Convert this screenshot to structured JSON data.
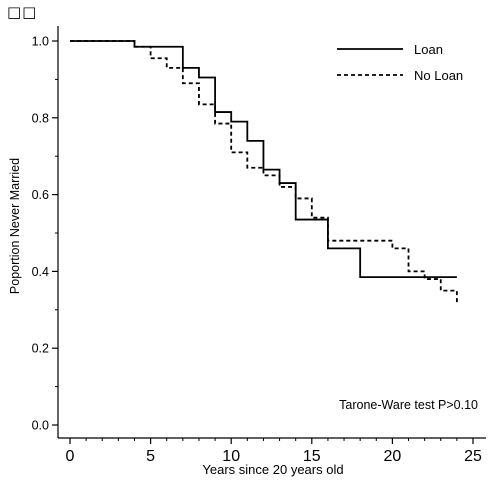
{
  "corner_text": "□□",
  "chart_data": {
    "type": "line",
    "title": "",
    "xlabel": "Years since 20 years old",
    "ylabel": "Poportion Never Married",
    "xlim": [
      0,
      25
    ],
    "ylim": [
      0.0,
      1.0
    ],
    "x_ticks": [
      0,
      5,
      10,
      15,
      20,
      25
    ],
    "x_tick_labels": [
      "0",
      "5",
      "10",
      "15",
      "20",
      "25"
    ],
    "y_ticks": [
      0.0,
      0.2,
      0.4,
      0.6,
      0.8,
      1.0
    ],
    "y_tick_labels": [
      "0.0",
      "0.2",
      "0.4",
      "0.6",
      "0.8",
      "1.0"
    ],
    "grid": false,
    "legend_position": "top-right",
    "annotation": "Tarone-Ware test  P>0.10",
    "series": [
      {
        "name": "Loan",
        "style": "solid",
        "color": "#000000",
        "step": true,
        "points": [
          [
            0,
            1.0
          ],
          [
            4,
            0.985
          ],
          [
            7,
            0.93
          ],
          [
            8,
            0.905
          ],
          [
            9,
            0.815
          ],
          [
            10,
            0.79
          ],
          [
            11,
            0.74
          ],
          [
            12,
            0.665
          ],
          [
            13,
            0.63
          ],
          [
            14,
            0.535
          ],
          [
            16,
            0.46
          ],
          [
            18,
            0.385
          ],
          [
            24,
            0.385
          ]
        ]
      },
      {
        "name": "No Loan",
        "style": "dashed",
        "color": "#000000",
        "step": true,
        "points": [
          [
            0,
            1.0
          ],
          [
            4,
            0.985
          ],
          [
            5,
            0.955
          ],
          [
            6,
            0.93
          ],
          [
            7,
            0.89
          ],
          [
            8,
            0.835
          ],
          [
            9,
            0.785
          ],
          [
            10,
            0.71
          ],
          [
            11,
            0.67
          ],
          [
            12,
            0.65
          ],
          [
            13,
            0.62
          ],
          [
            14,
            0.59
          ],
          [
            15,
            0.54
          ],
          [
            16,
            0.48
          ],
          [
            20,
            0.46
          ],
          [
            21,
            0.4
          ],
          [
            22,
            0.38
          ],
          [
            23,
            0.35
          ],
          [
            24,
            0.32
          ]
        ]
      }
    ]
  }
}
